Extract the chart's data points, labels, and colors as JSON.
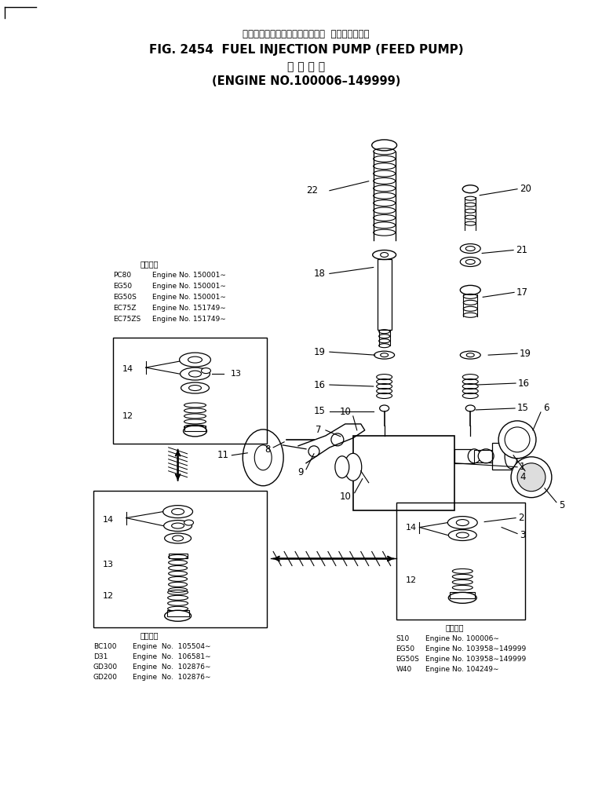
{
  "title_jp": "フェエルインジェクションポンプ  フィードポンプ",
  "title_en": "FIG. 2454  FUEL INJECTION PUMP (FEED PUMP)",
  "subtitle_jp": "適 用 号 機",
  "subtitle_en": "(ENGINE NO.100006–149999)",
  "bg_color": "#ffffff",
  "line_color": "#000000",
  "upper_info": [
    [
      "PC80",
      "Engine No. 150001∼"
    ],
    [
      "EG50",
      "Engine No. 150001∼"
    ],
    [
      "EG50S",
      "Engine No. 150001∼"
    ],
    [
      "EC75Z",
      "Engine No. 151749∼"
    ],
    [
      "EC75ZS",
      "Engine No. 151749∼"
    ]
  ],
  "lower_info": [
    [
      "BC100",
      "Engine  No.  105504∼"
    ],
    [
      "D31",
      "Engine  No.  106581∼"
    ],
    [
      "GD300",
      "Engine  No.  102876∼"
    ],
    [
      "GD200",
      "Engine  No.  102876∼"
    ]
  ],
  "right_info": [
    [
      "S10",
      "Engine No. 100006∼"
    ],
    [
      "EG50",
      "Engine No. 103958∼149999"
    ],
    [
      "EG50S",
      "Engine No. 103958∼149999"
    ],
    [
      "W40",
      "Engine No. 104249∼"
    ]
  ]
}
